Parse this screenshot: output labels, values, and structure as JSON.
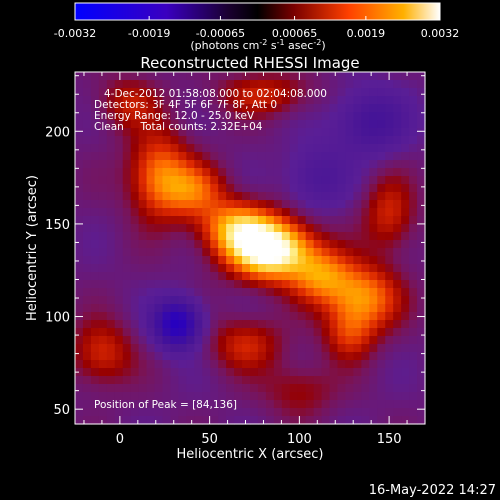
{
  "chart_data": {
    "type": "heatmap",
    "title": "Reconstructed RHESSI Image",
    "xlabel": "Heliocentric X (arcsec)",
    "ylabel": "Heliocentric Y (arcsec)",
    "xlim": [
      -25,
      170
    ],
    "ylim": [
      42,
      232
    ],
    "xticks": [
      0,
      50,
      100,
      150
    ],
    "yticks": [
      50,
      100,
      150,
      200
    ],
    "colorbar": {
      "ticks": [
        "-0.0032",
        "-0.0019",
        "-0.00065",
        "0.00065",
        "0.0019",
        "0.0032"
      ],
      "tick_values": [
        -0.0032,
        -0.0019,
        -0.00065,
        0.00065,
        0.0019,
        0.0032
      ],
      "range": [
        -0.0032,
        0.0032
      ],
      "units_label": "(photons cm",
      "units_exp1": "-2",
      "units_mid1": " s",
      "units_exp2": "-1",
      "units_mid2": " asec",
      "units_exp3": "-2",
      "units_end": ")",
      "colors": [
        "#0000ff",
        "#2a00a0",
        "#000000",
        "#7a0000",
        "#ff4000",
        "#ffb000",
        "#ffffff"
      ]
    },
    "annotations": [
      "4-Dec-2012 01:58:08.000 to 02:04:08.000",
      "Detectors: 3F 4F 5F 6F 7F 8F, Att 0",
      "Energy Range: 12.0 - 25.0 keV",
      "Clean     Total counts: 2.32E+04"
    ],
    "peak_label": "Position of Peak = [84,136]",
    "peak": [
      84,
      136
    ],
    "sources": [
      {
        "x": 84,
        "y": 136,
        "amp": 1.0,
        "sx": 16,
        "sy": 11
      },
      {
        "x": 65,
        "y": 148,
        "amp": 0.55,
        "sx": 14,
        "sy": 10
      },
      {
        "x": 22,
        "y": 176,
        "amp": 0.5,
        "sx": 12,
        "sy": 16
      },
      {
        "x": 42,
        "y": 168,
        "amp": 0.38,
        "sx": 12,
        "sy": 10
      },
      {
        "x": 135,
        "y": 110,
        "amp": 0.55,
        "sx": 14,
        "sy": 12
      },
      {
        "x": 112,
        "y": 122,
        "amp": 0.45,
        "sx": 12,
        "sy": 10
      },
      {
        "x": 128,
        "y": 90,
        "amp": 0.3,
        "sx": 10,
        "sy": 10
      },
      {
        "x": -10,
        "y": 80,
        "amp": 0.32,
        "sx": 12,
        "sy": 12
      },
      {
        "x": 150,
        "y": 155,
        "amp": 0.3,
        "sx": 10,
        "sy": 14
      },
      {
        "x": 80,
        "y": 220,
        "amp": 0.28,
        "sx": 18,
        "sy": 8
      },
      {
        "x": 5,
        "y": 215,
        "amp": 0.25,
        "sx": 12,
        "sy": 10
      },
      {
        "x": 70,
        "y": 85,
        "amp": 0.3,
        "sx": 14,
        "sy": 10
      },
      {
        "x": 100,
        "y": 60,
        "amp": 0.2,
        "sx": 14,
        "sy": 10
      }
    ],
    "negatives": [
      {
        "x": 32,
        "y": 96,
        "amp": 0.75,
        "sx": 9,
        "sy": 9
      },
      {
        "x": 140,
        "y": 205,
        "amp": 0.35,
        "sx": 14,
        "sy": 12
      },
      {
        "x": 110,
        "y": 175,
        "amp": 0.25,
        "sx": 12,
        "sy": 12
      }
    ]
  },
  "footer": {
    "date_stamp": "16-May-2022 14:27"
  }
}
